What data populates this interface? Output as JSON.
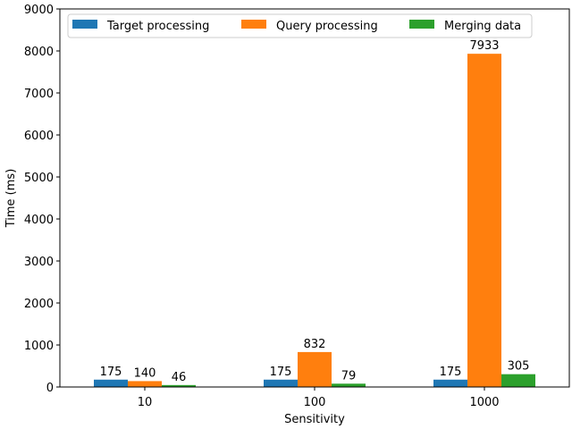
{
  "chart_data": {
    "type": "bar",
    "title": "",
    "xlabel": "Sensitivity",
    "ylabel": "Time (ms)",
    "categories": [
      "10",
      "100",
      "1000"
    ],
    "ylim": [
      0,
      9000
    ],
    "yticks": [
      0,
      1000,
      2000,
      3000,
      4000,
      5000,
      6000,
      7000,
      8000,
      9000
    ],
    "grid": false,
    "legend_position": "top",
    "series": [
      {
        "name": "Target processing",
        "color": "#1f77b4",
        "values": [
          175,
          175,
          175
        ]
      },
      {
        "name": "Query processing",
        "color": "#ff7f0e",
        "values": [
          140,
          832,
          7933
        ]
      },
      {
        "name": "Merging data",
        "color": "#2ca02c",
        "values": [
          46,
          79,
          305
        ]
      }
    ]
  }
}
